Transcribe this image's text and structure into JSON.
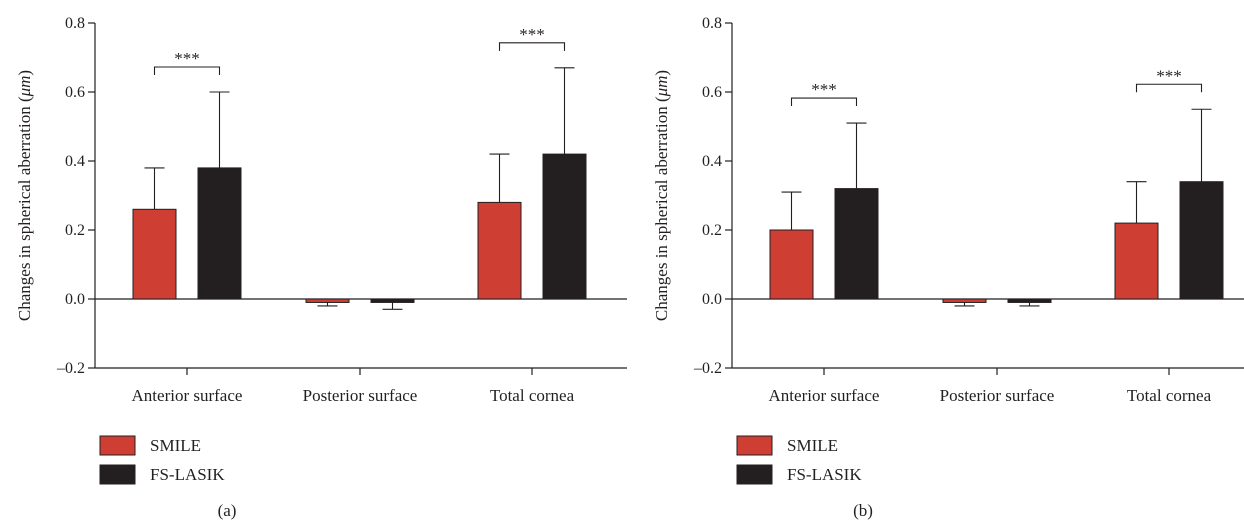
{
  "chart_data": [
    {
      "type": "bar",
      "panel_label": "(a)",
      "ylabel_prefix": "Changes in spherical aberration (",
      "ylabel_unit": "μm",
      "ylabel_suffix": ")",
      "ylim": [
        -0.2,
        0.8
      ],
      "yticks": [
        "0.8",
        "0.6",
        "0.4",
        "0.2",
        "0.0",
        "–0.2"
      ],
      "ytick_values": [
        0.8,
        0.6,
        0.4,
        0.2,
        0.0,
        -0.2
      ],
      "categories": [
        "Anterior surface",
        "Posterior surface",
        "Total cornea"
      ],
      "series": [
        {
          "name": "SMILE",
          "color": "#cf3e33",
          "values": [
            0.26,
            -0.01,
            0.28
          ],
          "errors": [
            0.12,
            0.01,
            0.14
          ]
        },
        {
          "name": "FS-LASIK",
          "color": "#231f20",
          "values": [
            0.38,
            -0.01,
            0.42
          ],
          "errors": [
            0.22,
            0.02,
            0.25
          ]
        }
      ],
      "significance": [
        {
          "category_index": 0,
          "label": "***"
        },
        {
          "category_index": 2,
          "label": "***"
        }
      ],
      "legend_position": "bottom-left"
    },
    {
      "type": "bar",
      "panel_label": "(b)",
      "ylabel_prefix": "Changes in spherical aberration (",
      "ylabel_unit": "μm",
      "ylabel_suffix": ")",
      "ylim": [
        -0.2,
        0.8
      ],
      "yticks": [
        "0.8",
        "0.6",
        "0.4",
        "0.2",
        "0.0",
        "–0.2"
      ],
      "ytick_values": [
        0.8,
        0.6,
        0.4,
        0.2,
        0.0,
        -0.2
      ],
      "categories": [
        "Anterior surface",
        "Posterior surface",
        "Total cornea"
      ],
      "series": [
        {
          "name": "SMILE",
          "color": "#cf3e33",
          "values": [
            0.2,
            -0.01,
            0.22
          ],
          "errors": [
            0.11,
            0.01,
            0.12
          ]
        },
        {
          "name": "FS-LASIK",
          "color": "#231f20",
          "values": [
            0.32,
            -0.01,
            0.34
          ],
          "errors": [
            0.19,
            0.01,
            0.21
          ]
        }
      ],
      "significance": [
        {
          "category_index": 0,
          "label": "***"
        },
        {
          "category_index": 2,
          "label": "***"
        }
      ],
      "legend_position": "bottom-left"
    }
  ]
}
